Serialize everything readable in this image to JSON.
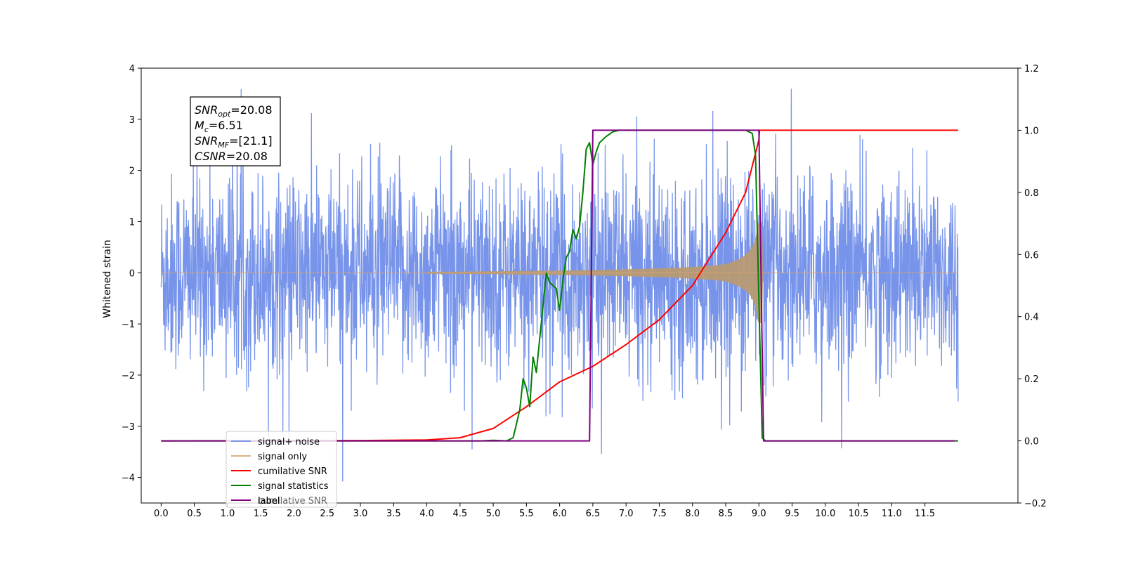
{
  "chart_data": {
    "type": "line",
    "ylabel": "Whitened strain",
    "x_ticks": [
      "0.0",
      "0.5",
      "1.0",
      "1.5",
      "2.0",
      "2.5",
      "3.0",
      "3.5",
      "4.0",
      "4.5",
      "5.0",
      "5.5",
      "6.0",
      "6.5",
      "7.0",
      "7.5",
      "8.0",
      "8.5",
      "9.0",
      "9.5",
      "10.0",
      "10.5",
      "11.0",
      "11.5"
    ],
    "y_left_ticks": [
      "4",
      "3",
      "2",
      "1",
      "0",
      "−1",
      "−2",
      "−3",
      "−4"
    ],
    "y_right_ticks": [
      "1.2",
      "1.0",
      "0.8",
      "0.6",
      "0.4",
      "0.2",
      "0.0",
      "−0.2"
    ],
    "xlim": [
      -0.3,
      12.9
    ],
    "ylim_left": [
      -4.5,
      4.0
    ],
    "ylim_right": [
      -0.2,
      1.2
    ],
    "x_range": [
      0.0,
      12.0
    ],
    "merger_time": 9.0,
    "chirp_start": 4.3,
    "noise_envelope_left": 2.3,
    "signal_peak_amplitude": 1.3,
    "colors": {
      "signal_noise": "#6b8be8",
      "signal_only": "#d4a373",
      "cumulative_snr": "#ff0000",
      "signal_statistics": "#008000",
      "label": "#800080"
    },
    "series": [
      {
        "name": "cumilative SNR",
        "axis": "right",
        "x": [
          0.0,
          3.0,
          4.0,
          4.5,
          5.0,
          5.5,
          6.0,
          6.5,
          7.0,
          7.5,
          8.0,
          8.5,
          8.8,
          9.0,
          9.01,
          12.0
        ],
        "values": [
          0.0,
          0.001,
          0.003,
          0.01,
          0.04,
          0.11,
          0.19,
          0.24,
          0.31,
          0.39,
          0.5,
          0.67,
          0.8,
          0.97,
          1.0,
          1.0
        ]
      },
      {
        "name": "signal statistics",
        "axis": "right",
        "x": [
          0.0,
          2.5,
          3.0,
          4.0,
          4.5,
          4.8,
          5.0,
          5.2,
          5.3,
          5.4,
          5.45,
          5.5,
          5.55,
          5.6,
          5.65,
          5.7,
          5.8,
          5.85,
          5.95,
          6.0,
          6.05,
          6.1,
          6.15,
          6.2,
          6.25,
          6.3,
          6.35,
          6.4,
          6.45,
          6.5,
          6.55,
          6.6,
          6.7,
          6.8,
          6.9,
          7.0,
          8.8,
          8.9,
          8.95,
          9.0,
          9.05,
          9.1,
          12.0
        ],
        "values": [
          0.0,
          0.0,
          0.0,
          0.0,
          0.0,
          0.0,
          0.002,
          0.0,
          0.01,
          0.1,
          0.2,
          0.17,
          0.11,
          0.27,
          0.22,
          0.33,
          0.54,
          0.51,
          0.49,
          0.42,
          0.52,
          0.59,
          0.61,
          0.68,
          0.65,
          0.69,
          0.8,
          0.94,
          0.96,
          0.89,
          0.93,
          0.96,
          0.98,
          0.995,
          1.0,
          1.0,
          1.0,
          0.99,
          0.92,
          0.45,
          0.01,
          0.0,
          0.0
        ]
      },
      {
        "name": "label",
        "axis": "right",
        "x": [
          0.0,
          6.45,
          6.5,
          9.0,
          9.07,
          11.95
        ],
        "values": [
          0.0,
          0.0,
          1.0,
          1.0,
          0.0,
          0.0
        ]
      }
    ],
    "legend": {
      "position": "lower-left",
      "entries": [
        "signal+ noise",
        "signal only",
        "cumilative SNR",
        "signal statistics",
        "label"
      ],
      "overlapping_text": "cumilative SNR"
    },
    "annotation": {
      "lines": [
        {
          "base": "SNR",
          "sub": "opt",
          "value": "=20.08"
        },
        {
          "base": "M",
          "sub": "c",
          "value": "=6.51"
        },
        {
          "base": "SNR",
          "sub": "MF",
          "value": "=[21.1]"
        },
        {
          "base": "CSNR",
          "sub": "",
          "value": "=20.08"
        }
      ]
    },
    "grid": false
  }
}
